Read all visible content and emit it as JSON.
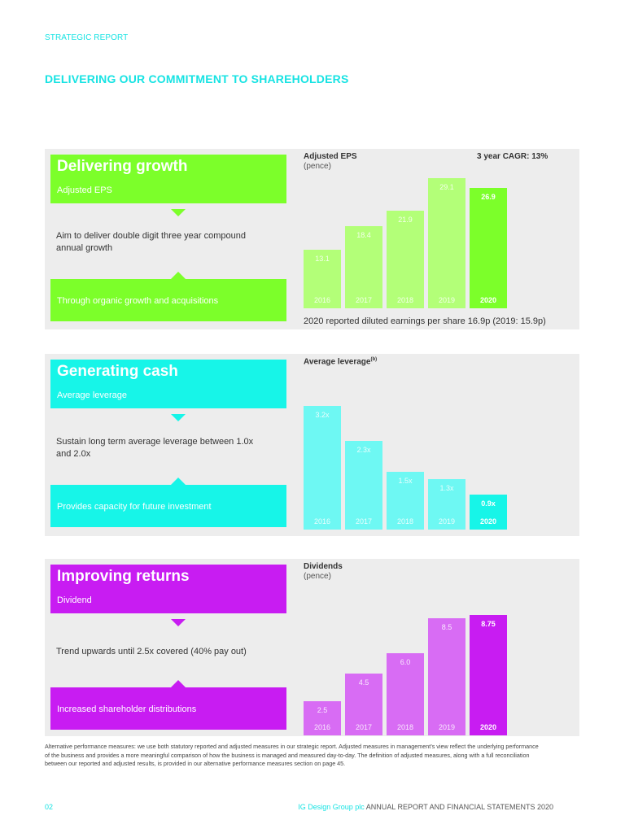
{
  "section_label": "STRATEGIC REPORT",
  "page_title": "DELIVERING OUR COMMITMENT TO SHAREHOLDERS",
  "colors": {
    "accent": "#17e3e3",
    "green": "#7cff2a",
    "cyan": "#17f5e8",
    "magenta": "#c81cf2"
  },
  "panels": [
    {
      "title": "Delivering growth",
      "subtitle": "Adjusted EPS",
      "aim": "Aim to deliver double digit three year compound annual growth",
      "footer": "Through organic growth and acquisitions",
      "chart_title": "Adjusted EPS",
      "chart_sup": "",
      "chart_subtitle": "(pence)",
      "cagr": "3 year CAGR: 13%",
      "note": "2020 reported diluted earnings per share 16.9p (2019: 15.9p)"
    },
    {
      "title": "Generating cash",
      "subtitle": "Average leverage",
      "aim": "Sustain long term average leverage between 1.0x and 2.0x",
      "footer": "Provides capacity for future investment",
      "chart_title": "Average leverage",
      "chart_sup": "(b)",
      "chart_subtitle": "",
      "cagr": "",
      "note": ""
    },
    {
      "title": "Improving returns",
      "subtitle": "Dividend",
      "aim": "Trend upwards until 2.5x covered (40% pay out)",
      "footer": "Increased shareholder distributions",
      "chart_title": "Dividends",
      "chart_sup": "",
      "chart_subtitle": "(pence)",
      "cagr": "",
      "note": ""
    }
  ],
  "chart_data": [
    {
      "type": "bar",
      "title": "Adjusted EPS",
      "subtitle": "(pence)",
      "categories": [
        "2016",
        "2017",
        "2018",
        "2019",
        "2020"
      ],
      "values": [
        13.1,
        18.4,
        21.9,
        29.1,
        26.9
      ],
      "labels": [
        "13.1",
        "18.4",
        "21.9",
        "29.1",
        "26.9"
      ],
      "ylim": [
        0,
        29.1
      ],
      "highlight_index": 4
    },
    {
      "type": "bar",
      "title": "Average leverage",
      "categories": [
        "2016",
        "2017",
        "2018",
        "2019",
        "2020"
      ],
      "values": [
        3.2,
        2.3,
        1.5,
        1.3,
        0.9
      ],
      "labels": [
        "3.2x",
        "2.3x",
        "1.5x",
        "1.3x",
        "0.9x"
      ],
      "ylim": [
        0,
        3.2
      ],
      "highlight_index": 4
    },
    {
      "type": "bar",
      "title": "Dividends",
      "subtitle": "(pence)",
      "categories": [
        "2016",
        "2017",
        "2018",
        "2019",
        "2020"
      ],
      "values": [
        2.5,
        4.5,
        6.0,
        8.5,
        8.75
      ],
      "labels": [
        "2.5",
        "4.5",
        "6.0",
        "8.5",
        "8.75"
      ],
      "ylim": [
        0,
        8.75
      ],
      "highlight_index": 4
    }
  ],
  "apm_note": "Alternative performance measures: we use both statutory reported and adjusted measures in our strategic report. Adjusted measures in management’s view reflect the underlying performance of the business and provides a more meaningful comparison of how the business is managed and measured day-to-day. The definition of adjusted measures, along with a full reconciliation between our reported and adjusted results, is provided in our alternative performance measures section on page 45.",
  "footer": {
    "page_number": "02",
    "brand": "IG Design Group plc",
    "report": "ANNUAL REPORT AND FINANCIAL STATEMENTS 2020"
  }
}
